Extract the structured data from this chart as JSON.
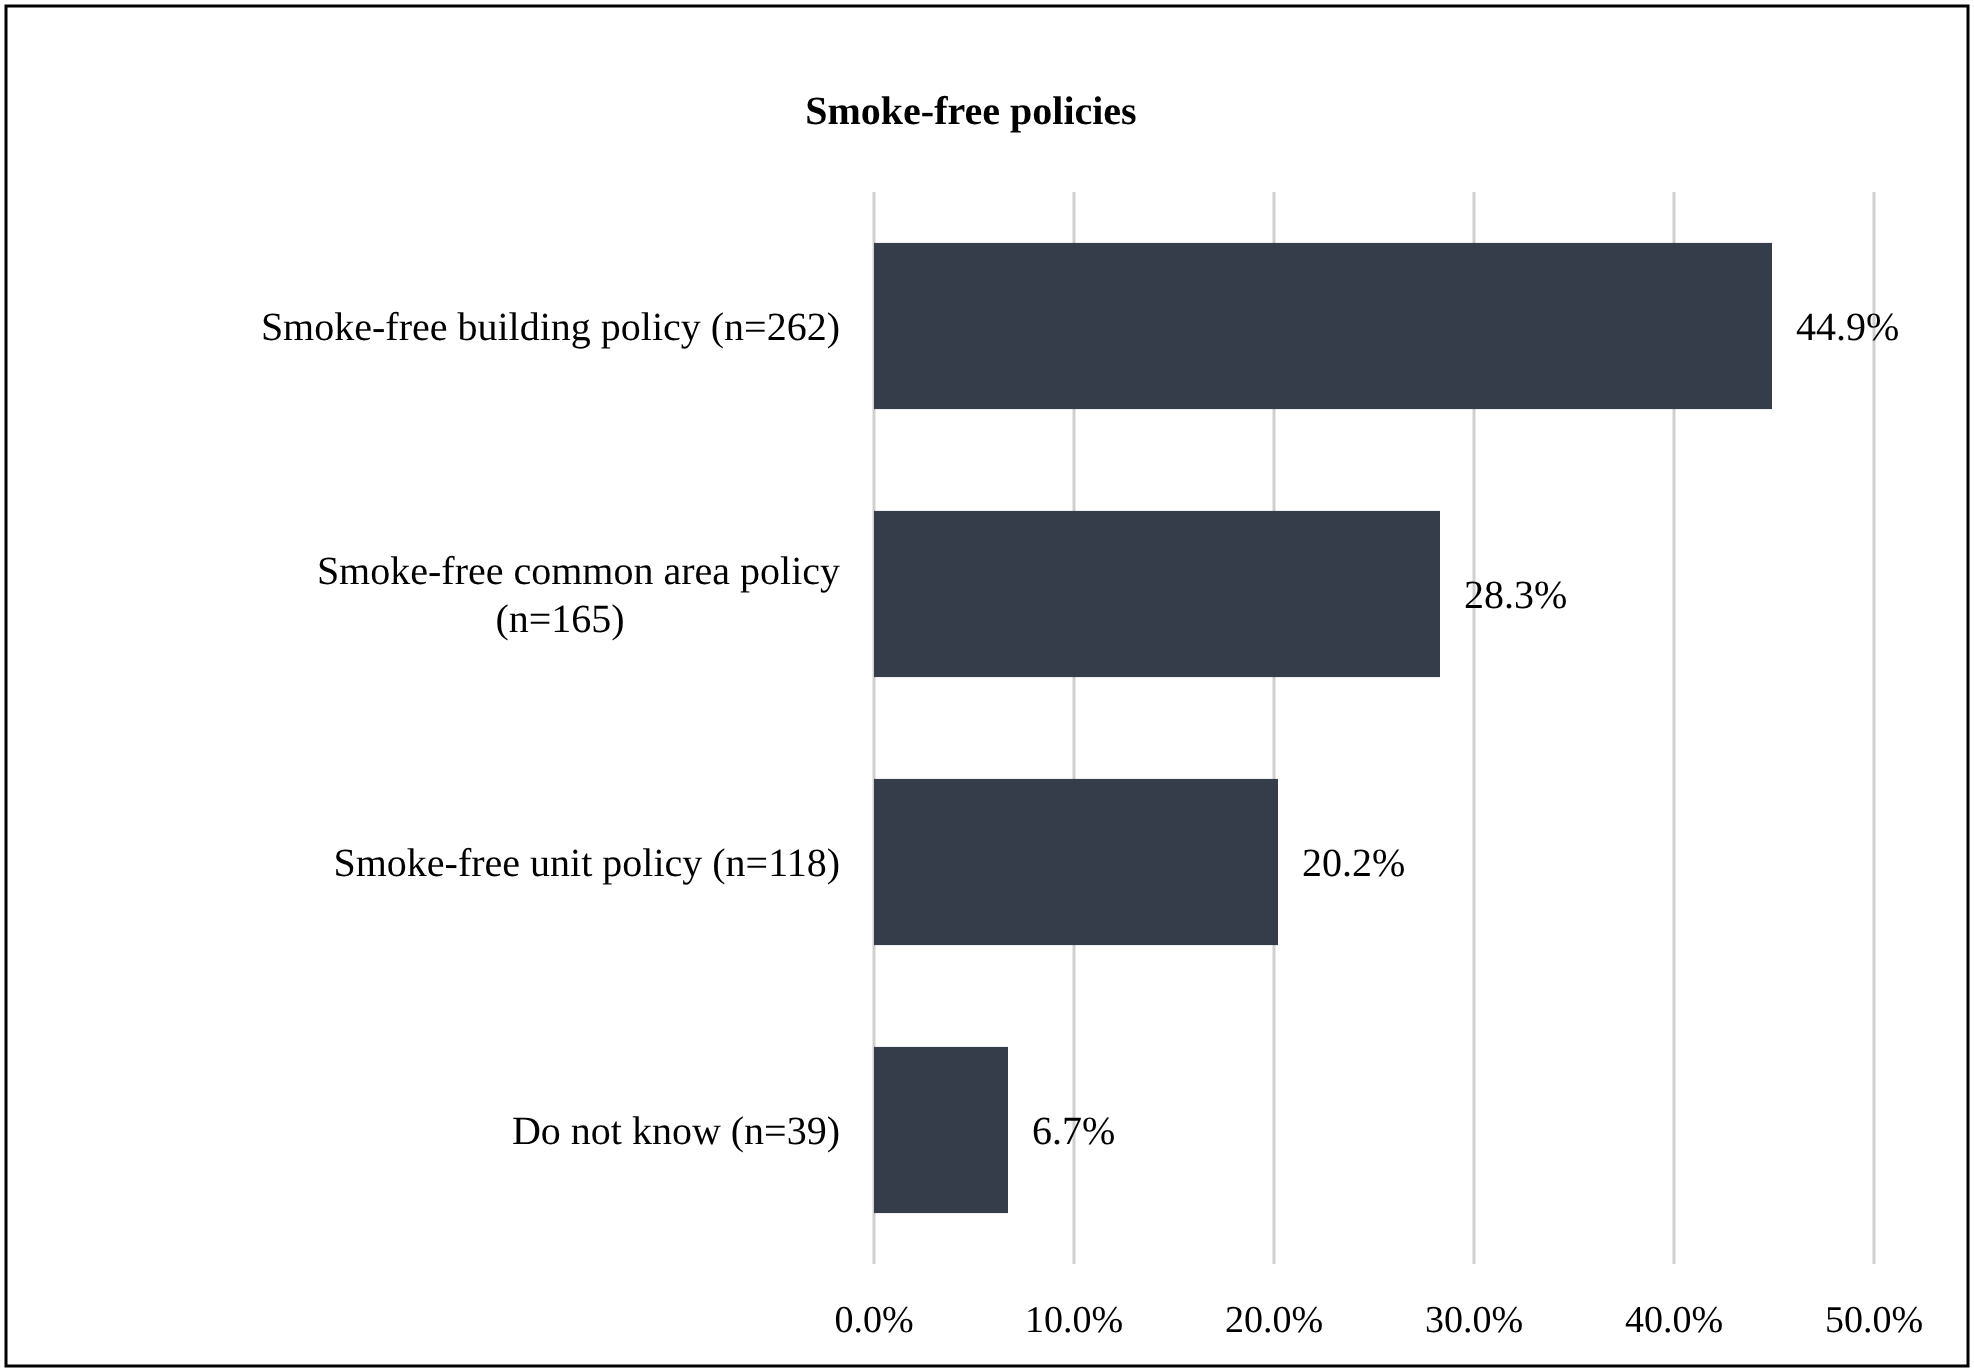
{
  "chart_data": {
    "type": "bar",
    "orientation": "horizontal",
    "title": "Smoke-free policies",
    "categories": [
      "Smoke-free building policy (n=262)",
      "Smoke-free common area policy (n=165)",
      "Smoke-free unit policy (n=118)",
      "Do not know (n=39)"
    ],
    "values": [
      44.9,
      28.3,
      20.2,
      6.7
    ],
    "value_labels": [
      "44.9%",
      "28.3%",
      "20.2%",
      "6.7%"
    ],
    "color": "#353d4b",
    "xlim": [
      0,
      50
    ],
    "xticks": [
      {
        "value": 0,
        "label": "0.0%"
      },
      {
        "value": 10,
        "label": "10.0%"
      },
      {
        "value": 20,
        "label": "20.0%"
      },
      {
        "value": 30,
        "label": "30.0%"
      },
      {
        "value": 40,
        "label": "40.0%"
      },
      {
        "value": 50,
        "label": "50.0%"
      }
    ],
    "grid": "x"
  }
}
